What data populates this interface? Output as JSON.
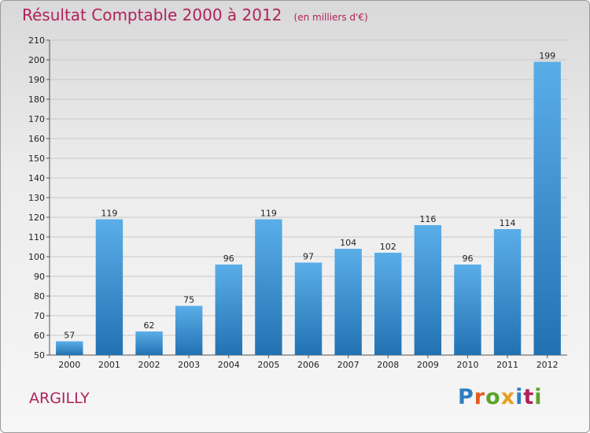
{
  "title": "Résultat Comptable 2000 à 2012",
  "subtitle": "(en milliers d'€)",
  "commune": "ARGILLY",
  "logo": {
    "text": "Proxiti",
    "letters": [
      "P",
      "r",
      "o",
      "x",
      "i",
      "t",
      "i"
    ]
  },
  "colors": {
    "title": "#b0225a",
    "bar_top": "#5aaee8",
    "bar_bottom": "#2272b2",
    "logo": [
      "#2d7fc0",
      "#e65b1d",
      "#5aa329",
      "#e6a01d",
      "#2d7fc0",
      "#b0225a",
      "#5aa329"
    ]
  },
  "chart_data": {
    "type": "bar",
    "title": "Résultat Comptable 2000 à 2012",
    "xlabel": "",
    "ylabel": "",
    "ylim": [
      50,
      210
    ],
    "yticks": [
      50,
      60,
      70,
      80,
      90,
      100,
      110,
      120,
      130,
      140,
      150,
      160,
      170,
      180,
      190,
      200,
      210
    ],
    "grid": true,
    "categories": [
      "2000",
      "2001",
      "2002",
      "2003",
      "2004",
      "2005",
      "2006",
      "2007",
      "2008",
      "2009",
      "2010",
      "2011",
      "2012"
    ],
    "values": [
      57,
      119,
      62,
      75,
      96,
      119,
      97,
      104,
      102,
      116,
      96,
      114,
      199
    ]
  }
}
